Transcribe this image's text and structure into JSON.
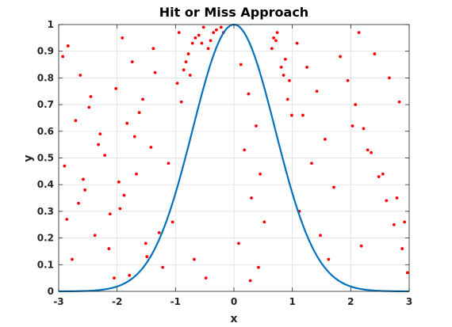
{
  "chart_data": {
    "type": "scatter",
    "title": "Hit or Miss Approach",
    "xlabel": "x",
    "ylabel": "y",
    "xlim": [
      -3,
      3
    ],
    "ylim": [
      0,
      1
    ],
    "xticks": [
      -3,
      -2,
      -1,
      0,
      1,
      2,
      3
    ],
    "xtick_labels": [
      "-3",
      "-2",
      "-1",
      "0",
      "1",
      "2",
      "3"
    ],
    "yticks": [
      0,
      0.1,
      0.2,
      0.3,
      0.4,
      0.5,
      0.6,
      0.7,
      0.8,
      0.9,
      1
    ],
    "ytick_labels": [
      "0",
      "0.1",
      "0.2",
      "0.3",
      "0.4",
      "0.5",
      "0.6",
      "0.7",
      "0.8",
      "0.9",
      "1"
    ],
    "grid": true,
    "box": true,
    "series": [
      {
        "kind": "curve",
        "function": "exp(-x^2)",
        "color": "#0072BD",
        "x": [
          -3,
          -2.8,
          -2.6,
          -2.4,
          -2.2,
          -2,
          -1.8,
          -1.6,
          -1.4,
          -1.2,
          -1,
          -0.9,
          -0.8,
          -0.7,
          -0.6,
          -0.5,
          -0.4,
          -0.3,
          -0.2,
          -0.1,
          0,
          0.1,
          0.2,
          0.3,
          0.4,
          0.5,
          0.6,
          0.7,
          0.8,
          0.9,
          1,
          1.2,
          1.4,
          1.6,
          1.8,
          2,
          2.2,
          2.4,
          2.6,
          2.8,
          3
        ],
        "y": [
          0.0001,
          0.0004,
          0.0012,
          0.0032,
          0.0079,
          0.0183,
          0.0392,
          0.0773,
          0.1409,
          0.2369,
          0.3679,
          0.4449,
          0.5273,
          0.6126,
          0.6977,
          0.7788,
          0.8521,
          0.9139,
          0.9608,
          0.99,
          1.0,
          0.99,
          0.9608,
          0.9139,
          0.8521,
          0.7788,
          0.6977,
          0.6126,
          0.5273,
          0.4449,
          0.3679,
          0.2369,
          0.1409,
          0.0773,
          0.0392,
          0.0183,
          0.0079,
          0.0032,
          0.0012,
          0.0004,
          0.0001
        ]
      },
      {
        "kind": "points",
        "color": "#ff0000",
        "x": [
          -2.84,
          -2.63,
          -2.45,
          -2.71,
          -2.32,
          -2.9,
          -2.55,
          -2.12,
          -2.38,
          -2.77,
          -2.05,
          -2.93,
          -2.48,
          -2.21,
          -2.66,
          -2.14,
          -2.86,
          -2.29,
          -2.58,
          -2.02,
          -1.91,
          -1.74,
          -1.56,
          -1.83,
          -1.42,
          -1.67,
          -1.95,
          -1.28,
          -1.49,
          -1.79,
          -1.35,
          -1.62,
          -1.12,
          -1.88,
          -1.51,
          -1.22,
          -1.7,
          -1.05,
          -1.38,
          -1.97,
          -0.94,
          -0.78,
          -0.86,
          -0.71,
          -0.97,
          -0.82,
          -0.66,
          -0.9,
          -0.75,
          -0.68,
          -0.52,
          -0.4,
          -0.3,
          -0.6,
          -0.44,
          -0.35,
          -0.22,
          -0.55,
          -0.18,
          -0.48,
          0.12,
          0.25,
          0.38,
          0.18,
          0.45,
          0.3,
          0.52,
          0.08,
          0.42,
          0.28,
          0.72,
          0.88,
          0.95,
          0.65,
          0.81,
          0.74,
          0.92,
          0.68,
          0.85,
          0.99,
          1.08,
          1.25,
          1.42,
          1.18,
          1.56,
          1.33,
          1.71,
          1.12,
          1.48,
          1.62,
          1.82,
          1.95,
          2.08,
          2.22,
          2.35,
          2.48,
          2.61,
          2.74,
          2.88,
          2.97,
          2.14,
          2.41,
          2.66,
          2.83,
          2.03,
          2.29,
          2.55,
          2.79,
          2.92,
          2.18
        ],
        "y": [
          0.92,
          0.81,
          0.73,
          0.64,
          0.55,
          0.47,
          0.38,
          0.29,
          0.21,
          0.12,
          0.05,
          0.88,
          0.69,
          0.51,
          0.33,
          0.16,
          0.27,
          0.59,
          0.42,
          0.76,
          0.95,
          0.86,
          0.72,
          0.63,
          0.54,
          0.44,
          0.31,
          0.22,
          0.13,
          0.06,
          0.82,
          0.67,
          0.48,
          0.36,
          0.18,
          0.09,
          0.58,
          0.26,
          0.91,
          0.41,
          0.97,
          0.89,
          0.83,
          0.93,
          0.78,
          0.86,
          0.95,
          0.71,
          0.81,
          0.12,
          0.99,
          0.94,
          0.98,
          0.96,
          0.91,
          0.97,
          0.99,
          0.93,
          0.97,
          0.05,
          0.85,
          0.74,
          0.62,
          0.53,
          0.44,
          0.35,
          0.26,
          0.18,
          0.09,
          0.04,
          0.94,
          0.87,
          0.79,
          0.91,
          0.84,
          0.97,
          0.72,
          0.95,
          0.81,
          0.66,
          0.93,
          0.84,
          0.75,
          0.66,
          0.57,
          0.48,
          0.39,
          0.3,
          0.21,
          0.12,
          0.88,
          0.79,
          0.7,
          0.61,
          0.52,
          0.43,
          0.34,
          0.25,
          0.16,
          0.07,
          0.97,
          0.89,
          0.8,
          0.71,
          0.62,
          0.53,
          0.44,
          0.35,
          0.26,
          0.17
        ]
      }
    ]
  }
}
